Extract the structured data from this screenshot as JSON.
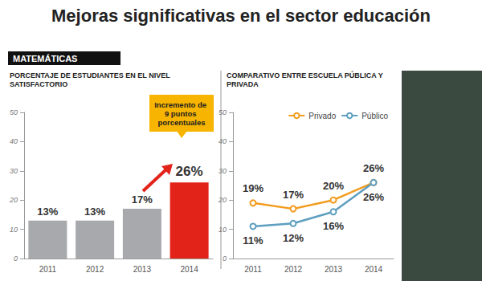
{
  "title": "Mejoras significativas en el sector educación",
  "section": "MATEMÁTICAS",
  "chart_data": [
    {
      "type": "bar",
      "title": "PORCENTAJE DE ESTUDIANTES EN EL NIVEL SATISFACTORIO",
      "categories": [
        "2011",
        "2012",
        "2013",
        "2014"
      ],
      "values": [
        13,
        13,
        17,
        26
      ],
      "value_labels": [
        "13%",
        "13%",
        "17%",
        "26%"
      ],
      "colors": [
        "#a7a9ac",
        "#a7a9ac",
        "#a7a9ac",
        "#e2231a"
      ],
      "ylim": [
        0,
        50
      ],
      "yticks": [
        0,
        10,
        20,
        30,
        40,
        50
      ],
      "grid": false,
      "data_labels": true,
      "annotations": [
        "Incremento de 9 puntos porcentuales"
      ]
    },
    {
      "type": "line",
      "title": "COMPARATIVO ENTRE ESCUELA PÚBLICA Y PRIVADA",
      "categories": [
        "2011",
        "2012",
        "2013",
        "2014"
      ],
      "series": [
        {
          "name": "Privado",
          "color": "#f39c1f",
          "values": [
            19,
            17,
            20,
            26
          ],
          "value_labels": [
            "19%",
            "17%",
            "20%",
            "26%"
          ]
        },
        {
          "name": "Público",
          "color": "#5e9ebf",
          "values": [
            11,
            12,
            16,
            26
          ],
          "value_labels": [
            "11%",
            "12%",
            "16%",
            "26%"
          ]
        }
      ],
      "ylim": [
        0,
        50
      ],
      "yticks": [
        0,
        10,
        20,
        30,
        40,
        50
      ],
      "grid": false,
      "legend": "top-right",
      "marker": "circle",
      "data_labels": true
    }
  ]
}
